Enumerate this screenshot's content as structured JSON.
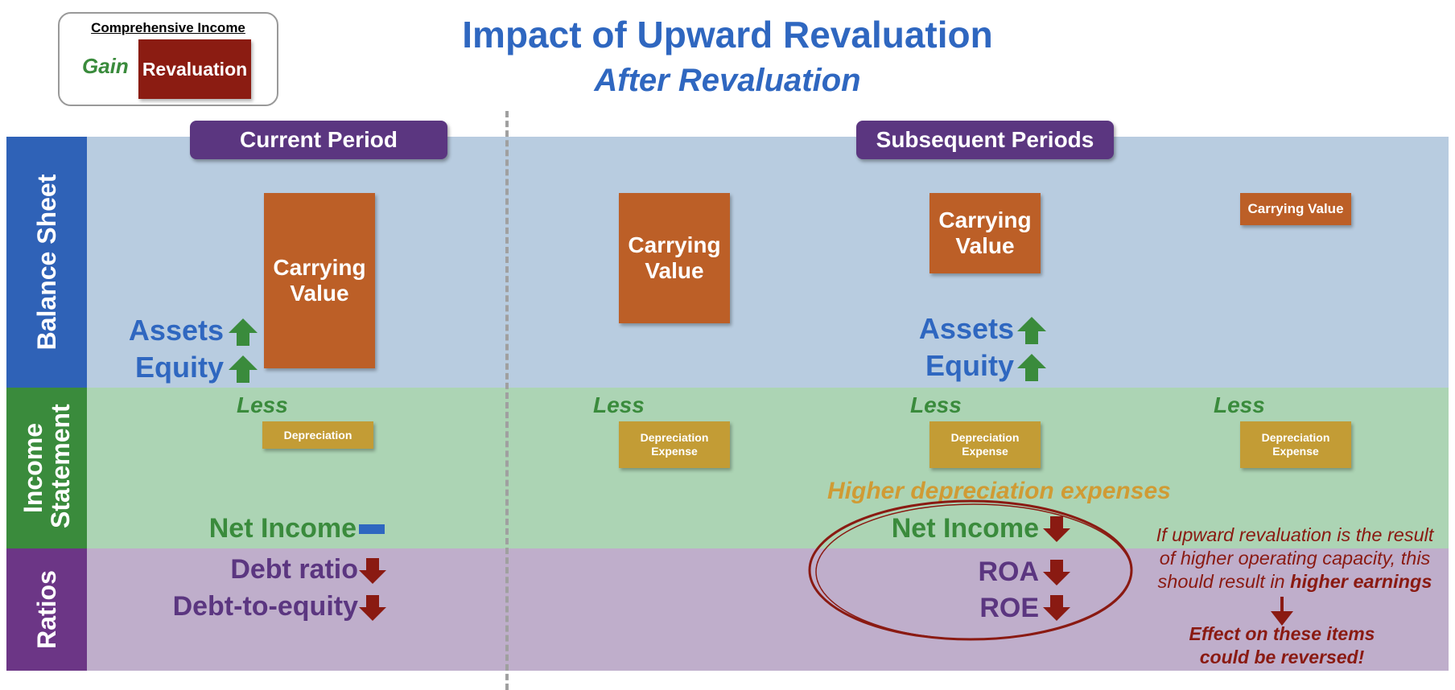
{
  "title": "Impact of Upward Revaluation",
  "subtitle": "After Revaluation",
  "legend": {
    "header": "Comprehensive Income",
    "gain": "Gain",
    "revaluation": "Revaluation"
  },
  "rows": {
    "balance_sheet": "Balance Sheet",
    "income_statement": "Income Statement",
    "ratios": "Ratios"
  },
  "periods": {
    "current": "Current Period",
    "subsequent": "Subsequent Periods"
  },
  "boxes": {
    "carrying_value": "Carrying Value",
    "depreciation": "Depreciation",
    "depreciation_expense": "Depreciation Expense"
  },
  "labels": {
    "assets": "Assets",
    "equity": "Equity",
    "less": "Less",
    "net_income": "Net Income",
    "debt_ratio": "Debt ratio",
    "debt_to_equity": "Debt-to-equity",
    "roa": "ROA",
    "roe": "ROE"
  },
  "notes": {
    "higher_dep": "Higher depreciation expenses",
    "upward_1": "If upward revaluation is the result",
    "upward_2": "of higher operating capacity, this",
    "upward_3_pre": "should result in ",
    "upward_3_bold": "higher earnings",
    "reversed_1": "Effect on these items",
    "reversed_2": "could be reversed!"
  },
  "colors": {
    "up_arrow": "#3a8b3c",
    "down_arrow": "#8a1a12",
    "no_change": "#2f67c0",
    "carrying_value": "#bc5f27",
    "depreciation": "#c39c35"
  }
}
